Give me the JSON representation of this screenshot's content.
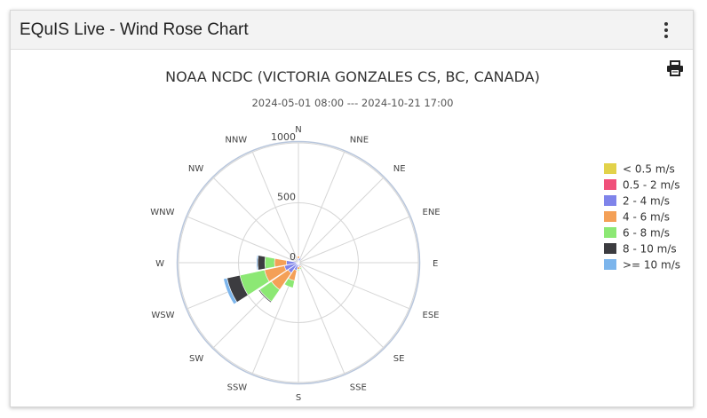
{
  "card": {
    "title": "EQuIS Live - Wind Rose Chart"
  },
  "toolbar": {
    "menu_icon": "more-vertical-icon",
    "print_icon": "printer-icon"
  },
  "chart_data": {
    "type": "windrose",
    "title": "NOAA NCDC (VICTORIA GONZALES CS, BC, CANADA)",
    "subtitle": "2024-05-01 08:00 --- 2024-10-21 17:00",
    "directions": [
      "N",
      "NNE",
      "NE",
      "ENE",
      "E",
      "ESE",
      "SE",
      "SSE",
      "S",
      "SSW",
      "SW",
      "WSW",
      "W",
      "WNW",
      "NW",
      "NNW"
    ],
    "radial_ticks": [
      "0",
      "500",
      "1000"
    ],
    "rmax": 1000,
    "legend_position": "right",
    "series": [
      {
        "name": "< 0.5 m/s",
        "color": "#e2d24a",
        "values": [
          0,
          0,
          0,
          0,
          0,
          0,
          0,
          5,
          5,
          0,
          0,
          0,
          0,
          0,
          0,
          0
        ]
      },
      {
        "name": "0.5 - 2 m/s",
        "color": "#f0507a",
        "values": [
          10,
          0,
          0,
          0,
          0,
          0,
          0,
          5,
          5,
          5,
          5,
          10,
          5,
          0,
          0,
          0
        ]
      },
      {
        "name": "2 - 4 m/s",
        "color": "#7f84ea",
        "values": [
          25,
          40,
          10,
          5,
          5,
          10,
          10,
          20,
          25,
          60,
          100,
          110,
          95,
          0,
          0,
          0
        ]
      },
      {
        "name": "4 - 6 m/s",
        "color": "#f4a057",
        "values": [
          20,
          0,
          0,
          0,
          0,
          0,
          0,
          15,
          20,
          90,
          170,
          170,
          100,
          0,
          0,
          0
        ]
      },
      {
        "name": "6 - 8 m/s",
        "color": "#8ce874",
        "values": [
          0,
          0,
          0,
          0,
          0,
          0,
          0,
          10,
          10,
          60,
          120,
          210,
          80,
          0,
          0,
          0
        ]
      },
      {
        "name": "8 - 10 m/s",
        "color": "#3c3c40",
        "values": [
          0,
          0,
          0,
          0,
          0,
          0,
          0,
          0,
          0,
          0,
          10,
          110,
          60,
          0,
          0,
          0
        ]
      },
      {
        "name": ">= 10 m/s",
        "color": "#7cb5ec",
        "values": [
          0,
          0,
          0,
          0,
          0,
          0,
          0,
          0,
          0,
          0,
          0,
          30,
          10,
          0,
          0,
          0
        ]
      }
    ]
  }
}
